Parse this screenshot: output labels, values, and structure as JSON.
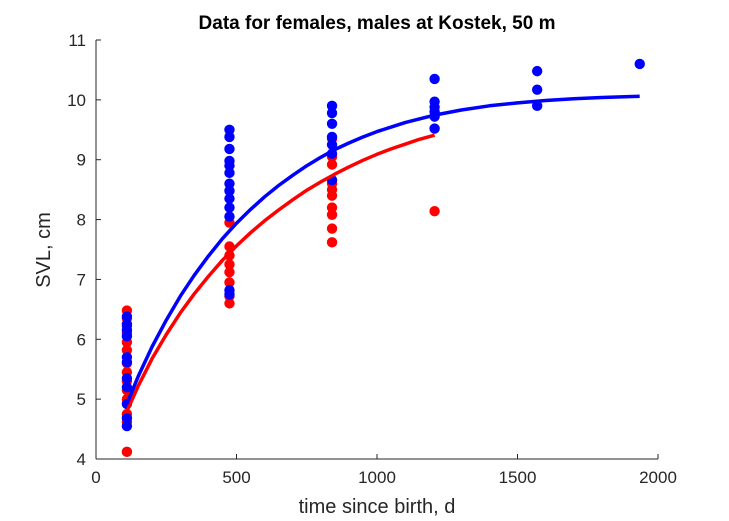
{
  "chart_data": {
    "type": "scatter",
    "title": "Data for females, males at Kostek, 50 m",
    "xlabel": "time since birth, d",
    "ylabel": "SVL, cm",
    "xlim": [
      0,
      2000
    ],
    "ylim": [
      4,
      11
    ],
    "xticks": [
      0,
      500,
      1000,
      1500,
      2000
    ],
    "yticks": [
      4,
      5,
      6,
      7,
      8,
      9,
      10,
      11
    ],
    "grid": false,
    "series": [
      {
        "kind": "points",
        "color": "#ff0000",
        "points": [
          [
            110,
            6.48
          ],
          [
            110,
            6.35
          ],
          [
            110,
            6.22
          ],
          [
            110,
            6.1
          ],
          [
            110,
            5.95
          ],
          [
            110,
            5.82
          ],
          [
            110,
            5.6
          ],
          [
            110,
            5.45
          ],
          [
            110,
            5.3
          ],
          [
            110,
            5.15
          ],
          [
            110,
            5.0
          ],
          [
            110,
            4.75
          ],
          [
            110,
            4.62
          ],
          [
            110,
            4.12
          ],
          [
            475,
            7.55
          ],
          [
            475,
            7.4
          ],
          [
            475,
            7.25
          ],
          [
            475,
            7.12
          ],
          [
            475,
            6.95
          ],
          [
            475,
            6.72
          ],
          [
            475,
            6.6
          ],
          [
            475,
            7.95
          ],
          [
            840,
            9.35
          ],
          [
            840,
            9.05
          ],
          [
            840,
            8.92
          ],
          [
            840,
            8.6
          ],
          [
            840,
            8.5
          ],
          [
            840,
            8.4
          ],
          [
            840,
            8.2
          ],
          [
            840,
            8.08
          ],
          [
            840,
            7.85
          ],
          [
            840,
            7.62
          ],
          [
            1205,
            8.14
          ]
        ]
      },
      {
        "kind": "points",
        "color": "#0000ff",
        "points": [
          [
            110,
            6.38
          ],
          [
            110,
            6.25
          ],
          [
            110,
            6.15
          ],
          [
            110,
            6.05
          ],
          [
            110,
            5.7
          ],
          [
            110,
            5.62
          ],
          [
            110,
            5.35
          ],
          [
            110,
            5.2
          ],
          [
            110,
            4.92
          ],
          [
            110,
            4.68
          ],
          [
            110,
            4.55
          ],
          [
            475,
            9.5
          ],
          [
            475,
            9.38
          ],
          [
            475,
            9.18
          ],
          [
            475,
            8.98
          ],
          [
            475,
            8.9
          ],
          [
            475,
            8.78
          ],
          [
            475,
            8.6
          ],
          [
            475,
            8.48
          ],
          [
            475,
            8.35
          ],
          [
            475,
            8.2
          ],
          [
            475,
            8.05
          ],
          [
            475,
            6.82
          ],
          [
            475,
            6.75
          ],
          [
            840,
            9.9
          ],
          [
            840,
            9.78
          ],
          [
            840,
            9.6
          ],
          [
            840,
            9.38
          ],
          [
            840,
            9.25
          ],
          [
            840,
            9.1
          ],
          [
            840,
            8.66
          ],
          [
            1205,
            10.35
          ],
          [
            1205,
            9.97
          ],
          [
            1205,
            9.88
          ],
          [
            1205,
            9.8
          ],
          [
            1205,
            9.72
          ],
          [
            1205,
            9.52
          ],
          [
            1570,
            10.48
          ],
          [
            1570,
            10.17
          ],
          [
            1570,
            9.9
          ],
          [
            1935,
            10.6
          ]
        ]
      },
      {
        "kind": "line",
        "color": "#ff0000",
        "points": [
          [
            110,
            4.8
          ],
          [
            150,
            5.22
          ],
          [
            200,
            5.68
          ],
          [
            250,
            6.08
          ],
          [
            300,
            6.44
          ],
          [
            350,
            6.76
          ],
          [
            400,
            7.05
          ],
          [
            450,
            7.32
          ],
          [
            500,
            7.56
          ],
          [
            550,
            7.78
          ],
          [
            600,
            7.98
          ],
          [
            650,
            8.16
          ],
          [
            700,
            8.33
          ],
          [
            750,
            8.49
          ],
          [
            800,
            8.63
          ],
          [
            850,
            8.76
          ],
          [
            900,
            8.88
          ],
          [
            950,
            8.99
          ],
          [
            1000,
            9.09
          ],
          [
            1050,
            9.18
          ],
          [
            1100,
            9.26
          ],
          [
            1150,
            9.34
          ],
          [
            1205,
            9.41
          ]
        ]
      },
      {
        "kind": "line",
        "color": "#0000ff",
        "points": [
          [
            110,
            4.92
          ],
          [
            150,
            5.38
          ],
          [
            200,
            5.88
          ],
          [
            250,
            6.32
          ],
          [
            300,
            6.72
          ],
          [
            350,
            7.07
          ],
          [
            400,
            7.39
          ],
          [
            450,
            7.68
          ],
          [
            500,
            7.94
          ],
          [
            550,
            8.17
          ],
          [
            600,
            8.38
          ],
          [
            650,
            8.57
          ],
          [
            700,
            8.74
          ],
          [
            750,
            8.9
          ],
          [
            800,
            9.04
          ],
          [
            850,
            9.17
          ],
          [
            900,
            9.28
          ],
          [
            950,
            9.38
          ],
          [
            1000,
            9.47
          ],
          [
            1100,
            9.62
          ],
          [
            1200,
            9.74
          ],
          [
            1300,
            9.83
          ],
          [
            1400,
            9.9
          ],
          [
            1500,
            9.95
          ],
          [
            1600,
            9.99
          ],
          [
            1700,
            10.02
          ],
          [
            1800,
            10.04
          ],
          [
            1935,
            10.06
          ]
        ]
      }
    ]
  }
}
